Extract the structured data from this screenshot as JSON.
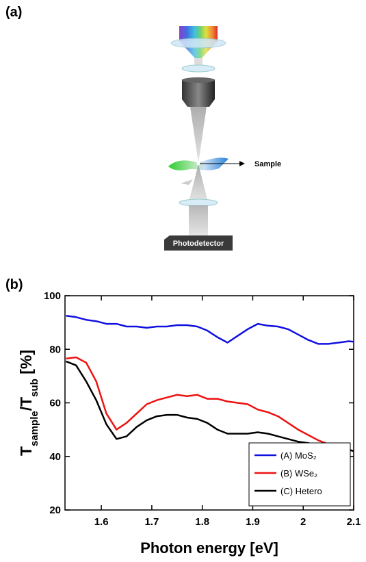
{
  "panel_a": {
    "label": "(a)",
    "sample_label": "Sample",
    "detector_label": "Photodetector"
  },
  "panel_b": {
    "label": "(b)"
  },
  "chart_data": {
    "type": "line",
    "xlabel": "Photon energy [eV]",
    "ylabel": [
      {
        "text": "T",
        "sub": false
      },
      {
        "text": "sample",
        "sub": true
      },
      {
        "text": "/T",
        "sub": false
      },
      {
        "text": "sub",
        "sub": true
      },
      {
        "text": " [%]",
        "sub": false
      }
    ],
    "x": [
      1.53,
      1.55,
      1.57,
      1.59,
      1.61,
      1.63,
      1.65,
      1.67,
      1.69,
      1.71,
      1.73,
      1.75,
      1.77,
      1.79,
      1.81,
      1.83,
      1.85,
      1.87,
      1.89,
      1.91,
      1.93,
      1.95,
      1.97,
      1.99,
      2.01,
      2.03,
      2.05,
      2.07,
      2.09,
      2.1
    ],
    "series": [
      {
        "name": "(A) MoS₂",
        "color": "#1010e0",
        "values": [
          92.5,
          92,
          91,
          90.5,
          89.5,
          89.5,
          88.5,
          88.5,
          88,
          88.5,
          88.5,
          89,
          89,
          88.5,
          87,
          84.5,
          82.5,
          85,
          87.5,
          89.5,
          88.8,
          88.5,
          87.5,
          85.5,
          83.5,
          82,
          82,
          82.5,
          83,
          82.8
        ]
      },
      {
        "name": "(B) WSe₂",
        "color": "#ee1111",
        "values": [
          76.5,
          77,
          75,
          68,
          56,
          50,
          52.5,
          56,
          59.5,
          61,
          62,
          63,
          62.5,
          63,
          61.5,
          61.5,
          60.5,
          60,
          59.5,
          57.5,
          56.5,
          55,
          52.5,
          50,
          48,
          46,
          44.5,
          43.5,
          42.5,
          42
        ]
      },
      {
        "name": "(C) Hetero",
        "color": "#000000",
        "values": [
          75.5,
          74,
          68,
          61,
          52,
          46.5,
          47.5,
          51,
          53.5,
          55,
          55.5,
          55.5,
          54.5,
          54,
          52.5,
          50,
          48.5,
          48.5,
          48.5,
          49,
          48.5,
          47.5,
          46.5,
          45.5,
          45,
          44,
          43.5,
          43,
          42.5,
          42
        ]
      }
    ],
    "xlim": [
      1.528,
      2.1
    ],
    "ylim": [
      20,
      100
    ],
    "xticks": [
      1.6,
      1.7,
      1.8,
      1.9,
      2.0,
      2.1
    ],
    "yticks": [
      20,
      40,
      60,
      80,
      100
    ],
    "grid": false,
    "legend": "lower right"
  }
}
